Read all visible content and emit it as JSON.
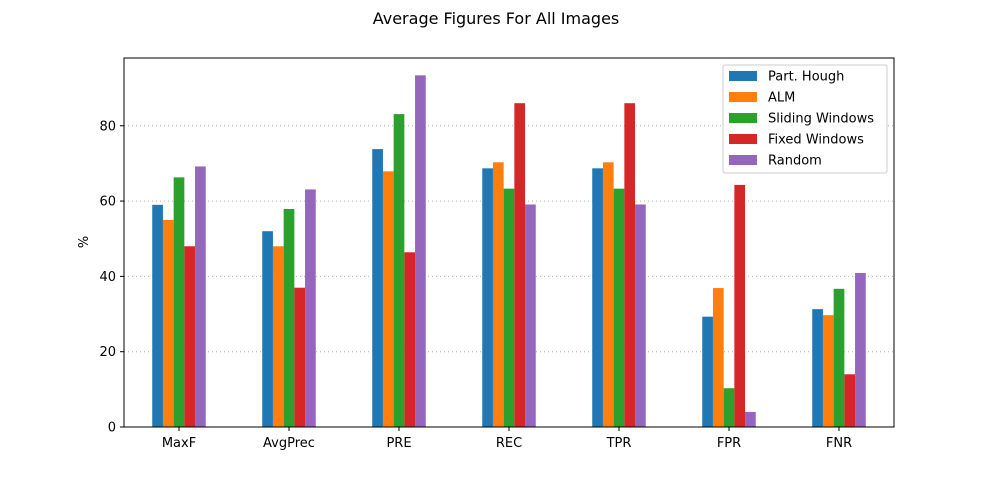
{
  "chart_data": {
    "type": "bar",
    "title": "Average Figures For All Images",
    "xlabel": "",
    "ylabel": "%",
    "categories": [
      "MaxF",
      "AvgPrec",
      "PRE",
      "REC",
      "TPR",
      "FPR",
      "FNR"
    ],
    "series": [
      {
        "name": "Part. Hough",
        "color": "#1f77b4",
        "values": [
          59.0,
          52.0,
          73.8,
          68.7,
          68.7,
          29.3,
          31.3
        ]
      },
      {
        "name": "ALM",
        "color": "#ff7f0e",
        "values": [
          55.0,
          48.0,
          67.9,
          70.3,
          70.3,
          36.9,
          29.7
        ]
      },
      {
        "name": "Sliding Windows",
        "color": "#2ca02c",
        "values": [
          66.3,
          57.9,
          83.1,
          63.3,
          63.3,
          10.3,
          36.7
        ]
      },
      {
        "name": "Fixed Windows",
        "color": "#d62728",
        "values": [
          48.0,
          37.0,
          46.4,
          86.0,
          86.0,
          64.3,
          14.0
        ]
      },
      {
        "name": "Random",
        "color": "#9467bd",
        "values": [
          69.2,
          63.1,
          93.4,
          59.1,
          59.1,
          4.0,
          40.9
        ]
      }
    ],
    "ylim": [
      0,
      98
    ],
    "yticks": [
      0,
      20,
      40,
      60,
      80
    ],
    "grid": "horizontal-dotted",
    "legend_position": "top-right"
  }
}
